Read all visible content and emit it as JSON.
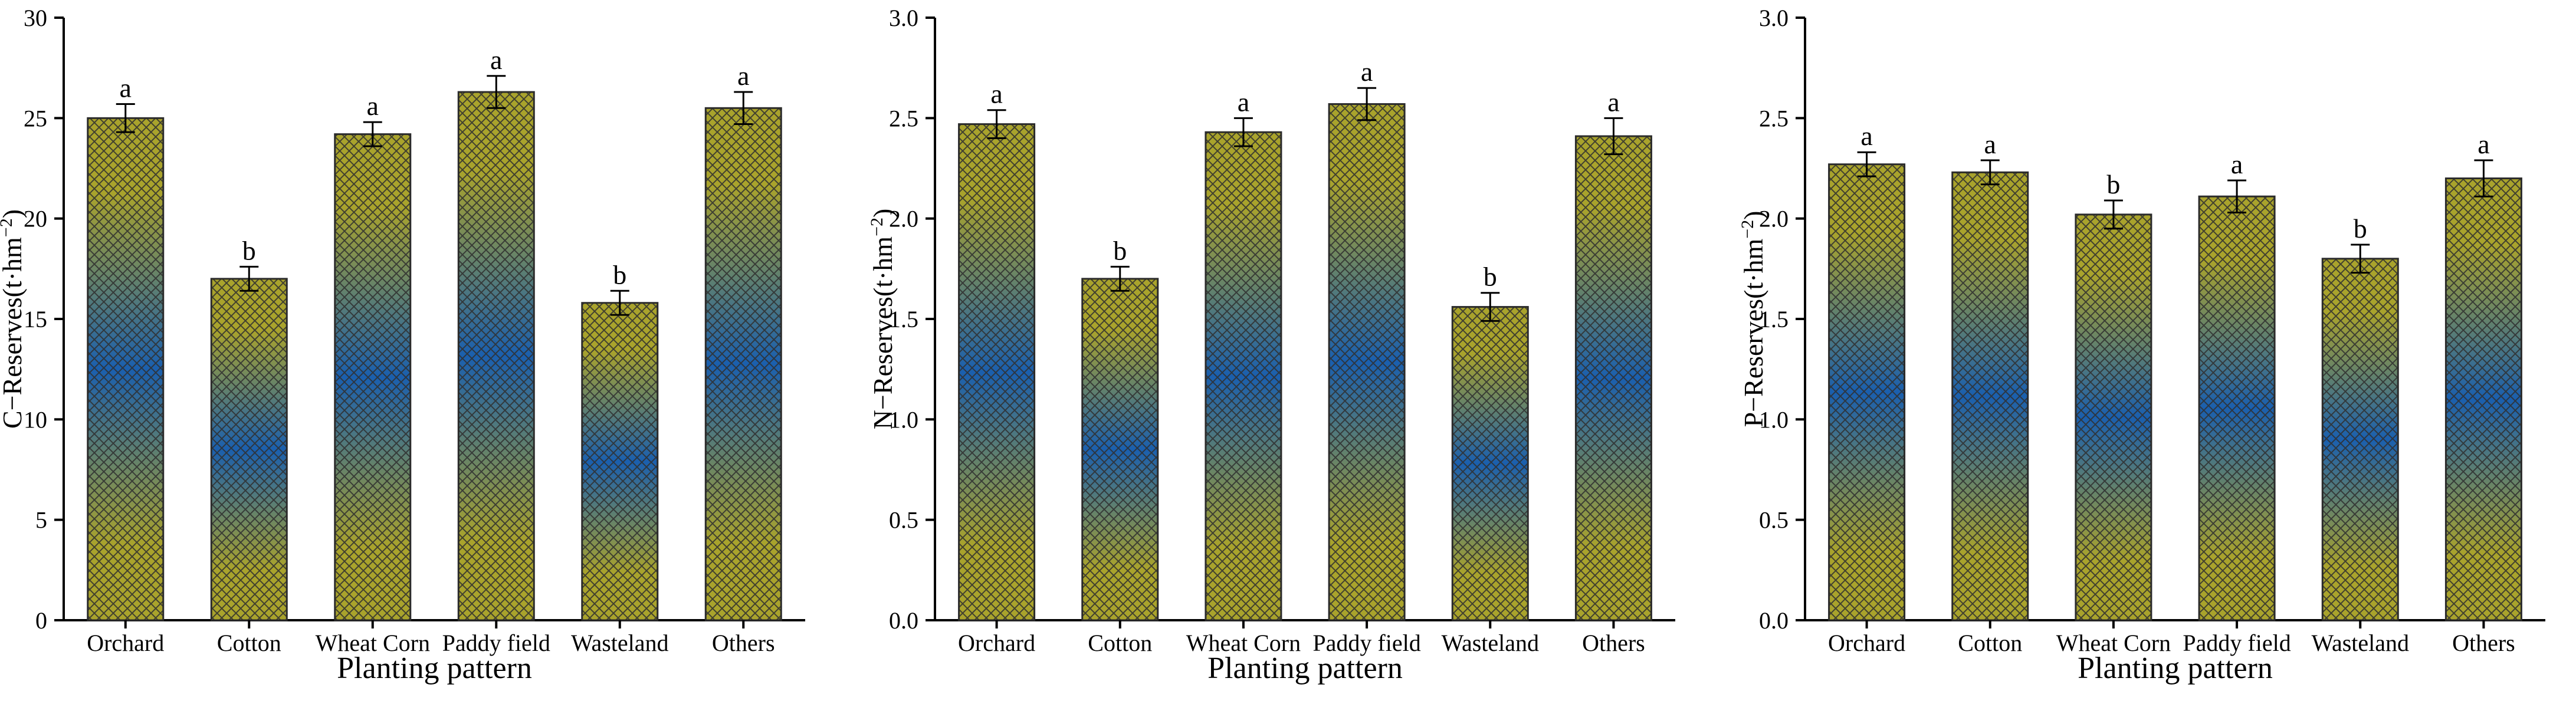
{
  "x_axis_title": "Planting pattern",
  "colors": {
    "gradient_edge": "#a9a32c",
    "gradient_mid": "#1a5fae",
    "hatch": "#2f2f2f"
  },
  "chart_data": [
    {
      "type": "bar",
      "ylabel_main": "C−Reserves(t·hm",
      "ylabel_sup": "−2",
      "ylabel_end": ")",
      "xlabel": "Planting pattern",
      "categories": [
        "Orchard",
        "Cotton",
        "Wheat Corn",
        "Paddy field",
        "Wasteland",
        "Others"
      ],
      "values": [
        25.0,
        17.0,
        24.2,
        26.3,
        15.8,
        25.5
      ],
      "errors": [
        0.7,
        0.6,
        0.6,
        0.8,
        0.6,
        0.8
      ],
      "letters": [
        "a",
        "b",
        "a",
        "a",
        "b",
        "a"
      ],
      "ylim": [
        0,
        30
      ],
      "ticks": [
        0,
        5,
        10,
        15,
        20,
        25,
        30
      ],
      "tick_labels": [
        "0",
        "5",
        "10",
        "15",
        "20",
        "25",
        "30"
      ]
    },
    {
      "type": "bar",
      "ylabel_main": "N−Reserves(t·hm",
      "ylabel_sup": "−2",
      "ylabel_end": ")",
      "xlabel": "Planting pattern",
      "categories": [
        "Orchard",
        "Cotton",
        "Wheat Corn",
        "Paddy field",
        "Wasteland",
        "Others"
      ],
      "values": [
        2.47,
        1.7,
        2.43,
        2.57,
        1.56,
        2.41
      ],
      "errors": [
        0.07,
        0.06,
        0.07,
        0.08,
        0.07,
        0.09
      ],
      "letters": [
        "a",
        "b",
        "a",
        "a",
        "b",
        "a"
      ],
      "ylim": [
        0,
        3.0
      ],
      "ticks": [
        0,
        0.5,
        1.0,
        1.5,
        2.0,
        2.5,
        3.0
      ],
      "tick_labels": [
        "0.0",
        "0.5",
        "1.0",
        "1.5",
        "2.0",
        "2.5",
        "3.0"
      ]
    },
    {
      "type": "bar",
      "ylabel_main": "P−Reserves(t·hm",
      "ylabel_sup": "−2",
      "ylabel_end": ")",
      "xlabel": "Planting pattern",
      "categories": [
        "Orchard",
        "Cotton",
        "Wheat Corn",
        "Paddy field",
        "Wasteland",
        "Others"
      ],
      "values": [
        2.27,
        2.23,
        2.02,
        2.11,
        1.8,
        2.2
      ],
      "errors": [
        0.06,
        0.06,
        0.07,
        0.08,
        0.07,
        0.09
      ],
      "letters": [
        "a",
        "a",
        "b",
        "a",
        "b",
        "a"
      ],
      "ylim": [
        0,
        3.0
      ],
      "ticks": [
        0,
        0.5,
        1.0,
        1.5,
        2.0,
        2.5,
        3.0
      ],
      "tick_labels": [
        "0.0",
        "0.5",
        "1.0",
        "1.5",
        "2.0",
        "2.5",
        "3.0"
      ]
    }
  ]
}
